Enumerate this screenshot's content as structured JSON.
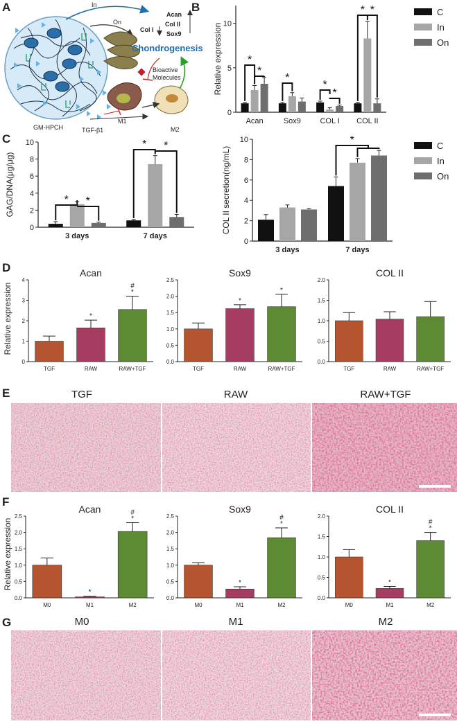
{
  "panels": {
    "A": "A",
    "B": "B",
    "C": "C",
    "D": "D",
    "E": "E",
    "F": "F",
    "G": "G"
  },
  "schematic": {
    "hydrogel_label": "GM-HPCH",
    "arrow_in": "In",
    "arrow_on": "On",
    "col1_label": "Col I",
    "genes": [
      "Acan",
      "Col II",
      "Sox9"
    ],
    "chondro_label": "Chondrogenesis",
    "bioactive_label": [
      "Bioactive",
      "Molecules"
    ],
    "tgf_label": "TGF-β1",
    "m1_label": "M1",
    "m2_label": "M2"
  },
  "images_e": {
    "labels": [
      "TGF",
      "RAW",
      "RAW+TGF"
    ]
  },
  "images_g": {
    "labels": [
      "M0",
      "M1",
      "M2"
    ]
  },
  "chart_data": [
    {
      "id": "B",
      "type": "bar",
      "ylabel": "Relative expression",
      "categories": [
        "Acan",
        "Sox9",
        "COL I",
        "COL II"
      ],
      "series": [
        {
          "name": "C",
          "color": "#111111",
          "values": [
            1.0,
            1.0,
            1.1,
            1.0
          ],
          "errors": [
            0.1,
            0.1,
            0.15,
            0.1
          ]
        },
        {
          "name": "In",
          "color": "#a6a6a6",
          "values": [
            2.5,
            1.8,
            0.3,
            8.3
          ],
          "errors": [
            0.5,
            0.4,
            0.2,
            1.9
          ]
        },
        {
          "name": "On",
          "color": "#6e6e6e",
          "values": [
            3.2,
            1.2,
            0.7,
            1.0
          ],
          "errors": [
            0.7,
            0.4,
            0.1,
            0.5
          ]
        }
      ],
      "ylim": [
        0,
        12
      ],
      "yticks": [
        0,
        5,
        10
      ]
    },
    {
      "id": "C1",
      "type": "bar",
      "ylabel": "GAG/DNA(μg/μg)",
      "categories": [
        "3 days",
        "7 days"
      ],
      "series": [
        {
          "name": "C",
          "color": "#111111",
          "values": [
            0.4,
            0.8
          ],
          "errors": [
            0.25,
            0.1
          ]
        },
        {
          "name": "In",
          "color": "#a6a6a6",
          "values": [
            2.7,
            7.4
          ],
          "errors": [
            0.3,
            1.0
          ]
        },
        {
          "name": "On",
          "color": "#6e6e6e",
          "values": [
            0.5,
            1.2
          ],
          "errors": [
            0.1,
            0.3
          ]
        }
      ],
      "ylim": [
        0,
        10
      ],
      "yticks": [
        0,
        2,
        4,
        6,
        8,
        10
      ]
    },
    {
      "id": "C2",
      "type": "bar",
      "ylabel": "COL II secretion(ng/mL)",
      "categories": [
        "3 days",
        "7 days"
      ],
      "series": [
        {
          "name": "C",
          "color": "#111111",
          "values": [
            2.1,
            5.4
          ],
          "errors": [
            0.5,
            0.9
          ]
        },
        {
          "name": "In",
          "color": "#a6a6a6",
          "values": [
            3.3,
            7.7
          ],
          "errors": [
            0.25,
            0.4
          ]
        },
        {
          "name": "On",
          "color": "#6e6e6e",
          "values": [
            3.1,
            8.4
          ],
          "errors": [
            0.1,
            0.5
          ]
        }
      ],
      "ylim": [
        0,
        10
      ],
      "yticks": [
        0,
        2,
        4,
        6,
        8,
        10
      ]
    },
    {
      "id": "D",
      "type": "bar",
      "ylabel": "Relative expression",
      "panels": [
        {
          "title": "Acan",
          "categories": [
            "TGF",
            "RAW",
            "RAW+TGF"
          ],
          "values": [
            1.0,
            1.65,
            2.55
          ],
          "errors": [
            0.25,
            0.38,
            0.65
          ],
          "marks": [
            "",
            "*",
            "#\n*"
          ],
          "ylim": [
            0,
            4
          ],
          "yticks": [
            0,
            1,
            2,
            3,
            4
          ]
        },
        {
          "title": "Sox9",
          "categories": [
            "TGF",
            "RAW",
            "RAW+TGF"
          ],
          "values": [
            1.0,
            1.62,
            1.68
          ],
          "errors": [
            0.18,
            0.12,
            0.38
          ],
          "marks": [
            "",
            "*",
            "*"
          ],
          "ylim": [
            0,
            2.5
          ],
          "yticks": [
            0.0,
            0.5,
            1.0,
            1.5,
            2.0,
            2.5
          ]
        },
        {
          "title": "COL II",
          "categories": [
            "TGF",
            "RAW",
            "RAW+TGF"
          ],
          "values": [
            1.0,
            1.04,
            1.1
          ],
          "errors": [
            0.2,
            0.18,
            0.37
          ],
          "marks": [
            "",
            "",
            ""
          ],
          "ylim": [
            0,
            2.0
          ],
          "yticks": [
            0.0,
            0.5,
            1.0,
            1.5,
            2.0
          ]
        }
      ],
      "colors": [
        "#b5552f",
        "#a73c62",
        "#5d8b34"
      ]
    },
    {
      "id": "F",
      "type": "bar",
      "ylabel": "Relative expression",
      "panels": [
        {
          "title": "Acan",
          "categories": [
            "M0",
            "M1",
            "M2"
          ],
          "values": [
            1.0,
            0.03,
            2.03
          ],
          "errors": [
            0.22,
            0.02,
            0.27
          ],
          "marks": [
            "",
            "*",
            "#\n*"
          ],
          "ylim": [
            0,
            2.5
          ],
          "yticks": [
            0.0,
            0.5,
            1.0,
            1.5,
            2.0,
            2.5
          ]
        },
        {
          "title": "Sox9",
          "categories": [
            "M0",
            "M1",
            "M2"
          ],
          "values": [
            1.0,
            0.27,
            1.84
          ],
          "errors": [
            0.07,
            0.07,
            0.3
          ],
          "marks": [
            "",
            "*",
            "#\n*"
          ],
          "ylim": [
            0,
            2.5
          ],
          "yticks": [
            0.0,
            0.5,
            1.0,
            1.5,
            2.0,
            2.5
          ]
        },
        {
          "title": "COL II",
          "categories": [
            "M0",
            "M1",
            "M2"
          ],
          "values": [
            1.0,
            0.23,
            1.4
          ],
          "errors": [
            0.18,
            0.05,
            0.2
          ],
          "marks": [
            "",
            "*",
            "#\n*"
          ],
          "ylim": [
            0,
            2.0
          ],
          "yticks": [
            0.0,
            0.5,
            1.0,
            1.5,
            2.0
          ]
        }
      ],
      "colors": [
        "#b5552f",
        "#a73c62",
        "#5d8b34"
      ]
    }
  ]
}
